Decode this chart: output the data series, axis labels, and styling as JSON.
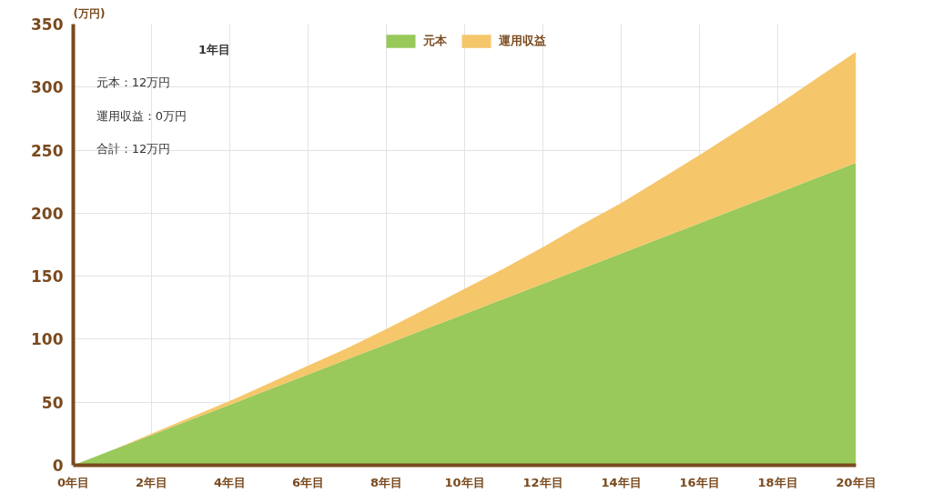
{
  "chart_data": {
    "type": "area",
    "stacked": true,
    "ylabel": "(万円)",
    "x": [
      0,
      1,
      2,
      3,
      4,
      5,
      6,
      7,
      8,
      9,
      10,
      11,
      12,
      13,
      14,
      15,
      16,
      17,
      18,
      19,
      20
    ],
    "series": [
      {
        "name": "元本",
        "color": "#98c95a",
        "values": [
          0,
          12,
          24,
          36,
          48,
          60,
          72,
          84,
          96,
          108,
          120,
          132,
          144,
          156,
          168,
          180,
          192,
          204,
          216,
          228,
          240
        ]
      },
      {
        "name": "運用収益",
        "color": "#f5c66a",
        "values": [
          0,
          0,
          1,
          2,
          3,
          5,
          7,
          9,
          12,
          16,
          20,
          24,
          29,
          35,
          40,
          47,
          54,
          62,
          70,
          79,
          88
        ]
      }
    ],
    "xlim": [
      0,
      20
    ],
    "ylim": [
      0,
      350
    ],
    "xticks": [
      {
        "value": 0,
        "label": "0年目"
      },
      {
        "value": 2,
        "label": "2年目"
      },
      {
        "value": 4,
        "label": "4年目"
      },
      {
        "value": 6,
        "label": "6年目"
      },
      {
        "value": 8,
        "label": "8年目"
      },
      {
        "value": 10,
        "label": "10年目"
      },
      {
        "value": 12,
        "label": "12年目"
      },
      {
        "value": 14,
        "label": "14年目"
      },
      {
        "value": 16,
        "label": "16年目"
      },
      {
        "value": 18,
        "label": "18年目"
      },
      {
        "value": 20,
        "label": "20年目"
      }
    ],
    "yticks": [
      0,
      50,
      100,
      150,
      200,
      250,
      300,
      350
    ],
    "grid": true,
    "legend": "top",
    "annotations": [
      "1年目",
      "元本：12万円",
      "運用収益：0万円",
      "合計：12万円"
    ]
  }
}
